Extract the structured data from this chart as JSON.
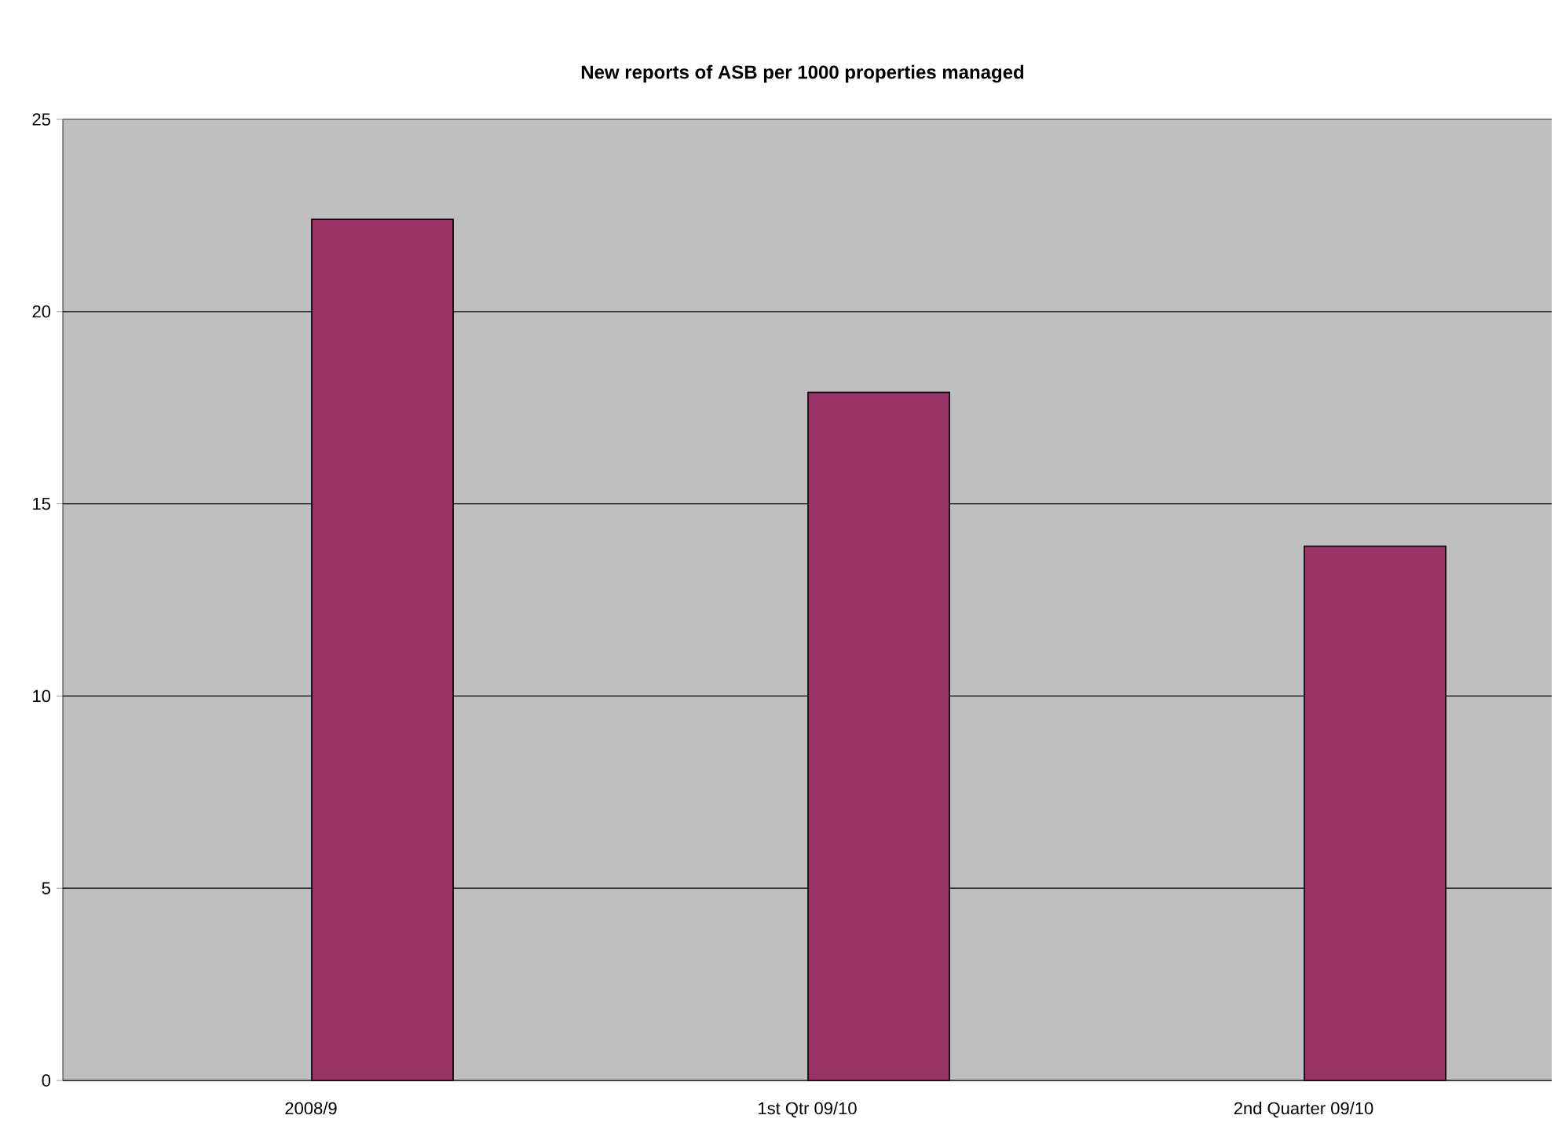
{
  "chart_data": {
    "type": "bar",
    "title": "New reports of ASB per 1000 properties managed",
    "categories": [
      "2008/9",
      "1st Qtr 09/10",
      "2nd Quarter 09/10"
    ],
    "values": [
      22.4,
      17.9,
      13.9
    ],
    "color": "#993366",
    "ylim": [
      0,
      25
    ],
    "yticks": [
      0,
      5,
      10,
      15,
      20,
      25
    ],
    "grid": "y"
  }
}
